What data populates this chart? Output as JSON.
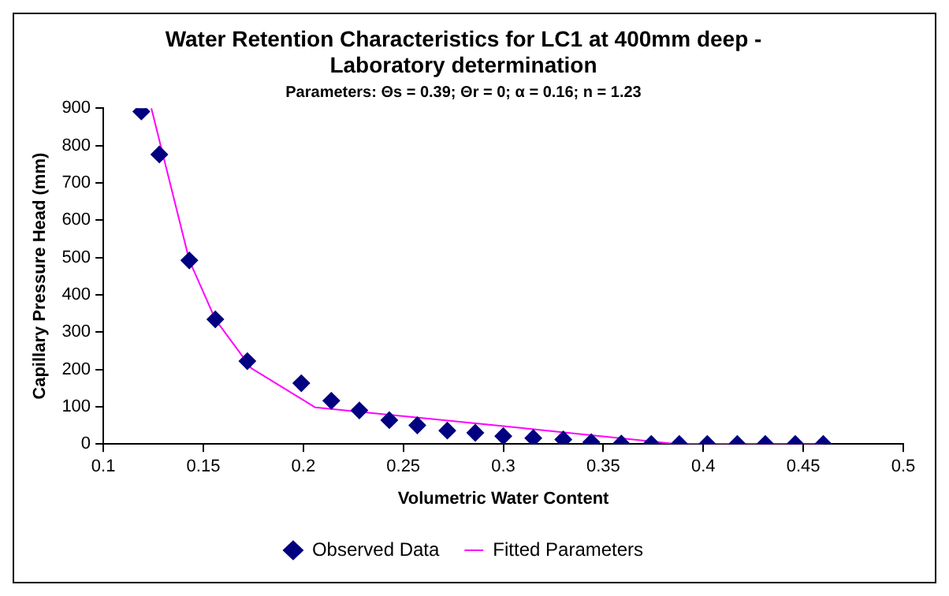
{
  "chart_data": {
    "type": "scatter",
    "title": "Water Retention Characteristics for LC1 at 400mm deep -\nLaboratory determination",
    "subtitle": "Parameters: Θs = 0.39; Θr = 0; α = 0.16; n = 1.23",
    "xlabel": "Volumetric Water Content",
    "ylabel": "Capillary Pressure Head (mm)",
    "xlim": [
      0.1,
      0.5
    ],
    "xticks": [
      0.1,
      0.15,
      0.2,
      0.25,
      0.3,
      0.35,
      0.4,
      0.45,
      0.5
    ],
    "ylim": [
      0,
      900
    ],
    "yticks": [
      0,
      100,
      200,
      300,
      400,
      500,
      600,
      700,
      800,
      900
    ],
    "grid": false,
    "legend": "bottom",
    "series": [
      {
        "name": "Observed Data",
        "type": "scatter",
        "marker": "diamond",
        "color": "#000080",
        "x": [
          0.119,
          0.128,
          0.143,
          0.156,
          0.172,
          0.199,
          0.214,
          0.228,
          0.243,
          0.257,
          0.272,
          0.286,
          0.3,
          0.315,
          0.33,
          0.344,
          0.359,
          0.374,
          0.388,
          0.402,
          0.417,
          0.431,
          0.446,
          0.46
        ],
        "values": [
          891,
          776,
          492,
          334,
          222,
          163,
          116,
          90,
          64,
          50,
          36,
          30,
          21,
          16,
          12,
          5,
          1,
          0,
          0,
          0,
          0,
          0,
          0,
          0
        ]
      },
      {
        "name": "Fitted Parameters",
        "type": "line",
        "marker": "none",
        "color": "#ff00ff",
        "x": [
          0.124,
          0.143,
          0.156,
          0.174,
          0.206,
          0.3,
          0.385,
          0.46
        ],
        "values": [
          900,
          492,
          334,
          203,
          98,
          48,
          1,
          0
        ]
      }
    ]
  }
}
